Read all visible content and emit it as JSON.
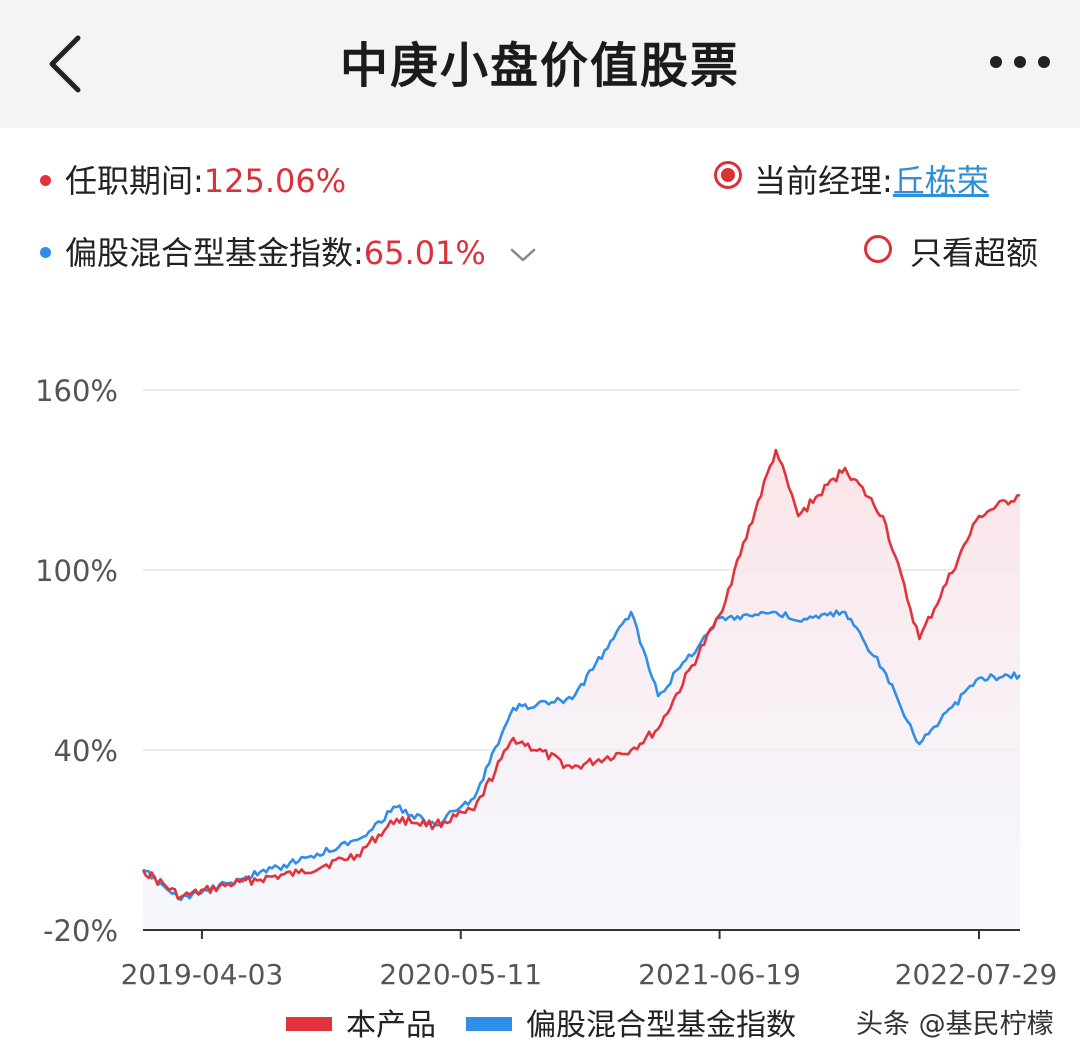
{
  "header": {
    "title": "中庚小盘价值股票",
    "back_icon": "chevron-left-icon",
    "more_icon": "more-horizontal-icon"
  },
  "legend": {
    "fund_label": "任职期间:",
    "fund_value": "125.06%",
    "index_label": "偏股混合型基金指数:",
    "index_value": "65.01%",
    "manager_label": "当前经理:",
    "manager_name": "丘栋荣",
    "excess_label": "只看超额",
    "fund_color": "#e1333b",
    "index_color": "#2f8fe8"
  },
  "bottom_legend": {
    "fund": "本产品",
    "index": "偏股混合型基金指数"
  },
  "watermark": "头条 @基民柠檬",
  "chart_data": {
    "type": "line",
    "ylim": [
      -20,
      160
    ],
    "y_ticks": [
      "160%",
      "100%",
      "40%",
      "-20%"
    ],
    "x_ticks": [
      "2019-04-03",
      "2020-05-11",
      "2021-06-19",
      "2022-07-29"
    ],
    "x": [
      "2019-01-01",
      "2019-03-01",
      "2019-06-01",
      "2019-09-01",
      "2019-12-01",
      "2020-02-01",
      "2020-04-01",
      "2020-06-01",
      "2020-08-01",
      "2020-11-01",
      "2021-02-01",
      "2021-03-15",
      "2021-06-19",
      "2021-09-15",
      "2021-10-20",
      "2022-01-01",
      "2022-03-01",
      "2022-04-27",
      "2022-07-29",
      "2022-10-01"
    ],
    "series": [
      {
        "name": "本产品",
        "color": "#e1333b",
        "values": [
          0,
          -9,
          -4,
          -1,
          5,
          17,
          15,
          20,
          44,
          34,
          40,
          47,
          85,
          140,
          118,
          134,
          118,
          77,
          118,
          125
        ]
      },
      {
        "name": "偏股混合型基金指数",
        "color": "#2f8fe8",
        "values": [
          0,
          -10,
          -3,
          3,
          10,
          21,
          15,
          24,
          54,
          57,
          86,
          58,
          84,
          86,
          83,
          86,
          67,
          42,
          64,
          65
        ]
      }
    ]
  }
}
